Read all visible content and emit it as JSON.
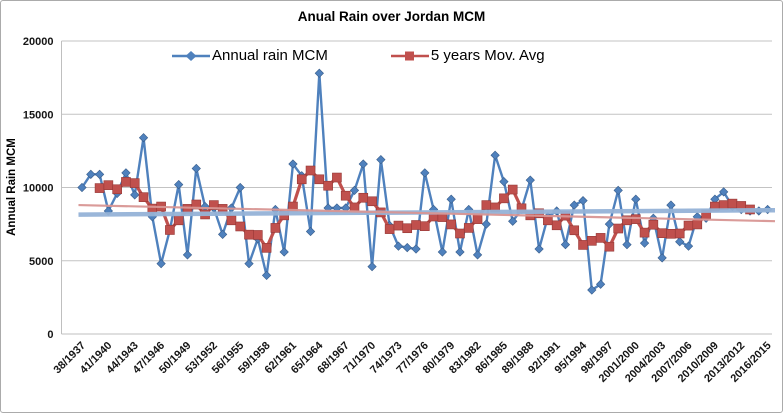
{
  "title": "Anual Rain over Jordan MCM",
  "y_axis_title": "Annual Rain MCM",
  "legend": [
    {
      "label": "Annual rain MCM",
      "color": "#4F81BD",
      "marker": "diamond"
    },
    {
      "label": "5 years Mov. Avg",
      "color": "#C0504D",
      "marker": "square"
    }
  ],
  "colors": {
    "annual_series": "#4F81BD",
    "annual_marker_edge": "#385D8A",
    "mov_avg_series": "#C0504D",
    "mov_avg_marker_edge": "#943634",
    "annual_trendline": "#95B3D7",
    "mov_avg_trendline": "#D99694",
    "gridline": "#C3C3C3",
    "axis_line": "#BFBFBF"
  },
  "chart_data": {
    "type": "line",
    "title": "Anual Rain over Jordan MCM",
    "xlabel": "",
    "ylabel": "Annual Rain MCM",
    "ylim": [
      0,
      20000
    ],
    "y_ticks": [
      0,
      5000,
      10000,
      15000,
      20000
    ],
    "grid": "horizontal",
    "legend_position": "top-inside",
    "n_points": 79,
    "x_tick_every": 3,
    "x_tick_labels": [
      "38/1937",
      "41/1940",
      "44/1943",
      "47/1946",
      "50/1949",
      "53/1952",
      "56/1955",
      "59/1958",
      "62/1961",
      "65/1964",
      "68/1967",
      "71/1970",
      "74/1973",
      "77/1976",
      "80/1979",
      "83/1982",
      "86/1985",
      "89/1988",
      "92/1991",
      "95/1994",
      "98/1997",
      "2001/2000",
      "2004/2003",
      "2007/2006",
      "2010/2009",
      "2013/2012",
      "2016/2015"
    ],
    "series": [
      {
        "name": "Annual rain MCM",
        "marker": "diamond",
        "start_index": 0,
        "values": [
          10000,
          10900,
          10900,
          8400,
          9600,
          11000,
          9500,
          13400,
          8000,
          4800,
          7100,
          10200,
          5400,
          11300,
          8700,
          8600,
          6800,
          8600,
          10000,
          4800,
          6500,
          4000,
          8500,
          5600,
          11600,
          10800,
          7000,
          17800,
          8600,
          8600,
          8600,
          9800,
          11600,
          4600,
          11900,
          7400,
          6000,
          5900,
          5800,
          11000,
          8500,
          5600,
          9200,
          5600,
          8500,
          5400,
          7500,
          12200,
          10400,
          7700,
          8500,
          10500,
          5800,
          8000,
          8400,
          6100,
          8800,
          9100,
          3000,
          3400,
          7500,
          9800,
          6100,
          9200,
          6200,
          7900,
          5200,
          8800,
          6300,
          6000,
          8000,
          7900,
          9200,
          9700,
          8700,
          8500,
          8400,
          8400,
          8500
        ]
      },
      {
        "name": "5 years Mov. Avg",
        "marker": "square",
        "start_index": 2,
        "values": [
          9960,
          10160,
          9880,
          10380,
          10300,
          9340,
          8560,
          8700,
          7100,
          7760,
          8540,
          8840,
          8160,
          8800,
          8540,
          7760,
          7340,
          6780,
          6760,
          5880,
          7240,
          8100,
          8700,
          10560,
          11160,
          10560,
          10120,
          10680,
          9440,
          8640,
          9300,
          9060,
          8300,
          7160,
          7400,
          7220,
          7440,
          7360,
          8020,
          7980,
          7480,
          6860,
          7240,
          7840,
          8800,
          8640,
          9260,
          9860,
          8580,
          8100,
          8240,
          7760,
          7420,
          8080,
          7080,
          6080,
          6360,
          6560,
          5960,
          7200,
          7760,
          7840,
          6920,
          7460,
          6880,
          6840,
          6860,
          7400,
          7480,
          8160,
          8700,
          8800,
          8900,
          8740,
          8500
        ]
      }
    ],
    "trendlines": [
      {
        "series": "Annual rain MCM",
        "start_value": 8150,
        "end_value": 8450
      },
      {
        "series": "5 years Mov. Avg",
        "start_value": 8800,
        "end_value": 7700
      }
    ]
  }
}
